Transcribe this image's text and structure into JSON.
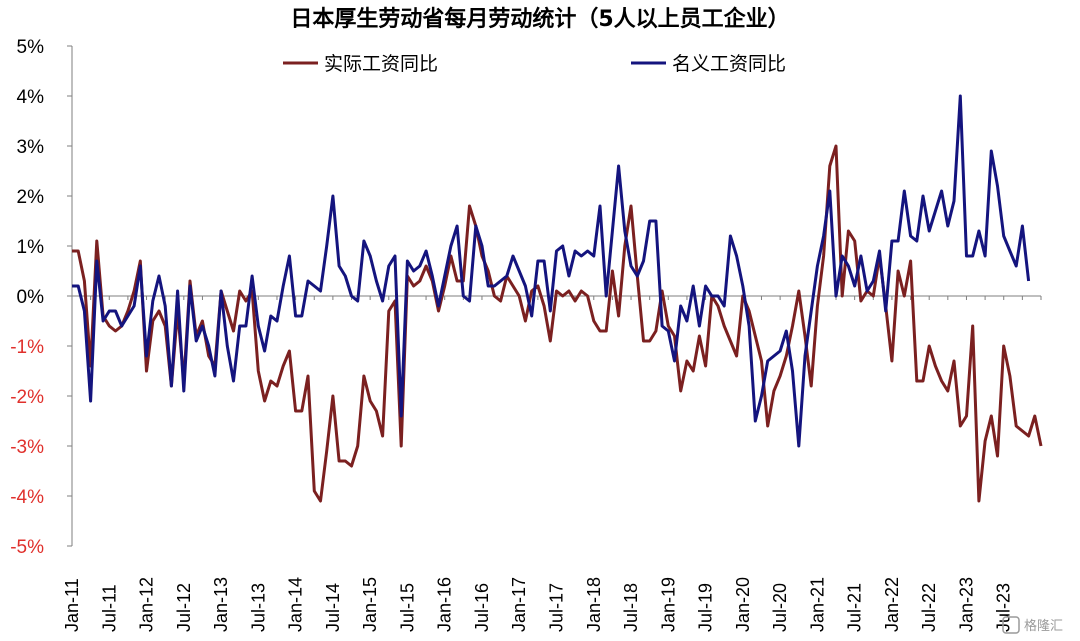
{
  "chart_data": {
    "type": "line",
    "title": "日本厚生劳动省每月劳动统计（5人以上员工企业）",
    "ylim": [
      -5,
      5
    ],
    "ytick_labels": [
      "5%",
      "4%",
      "3%",
      "2%",
      "1%",
      "0%",
      "-1%",
      "-2%",
      "-3%",
      "-4%",
      "-5%"
    ],
    "ytick_values": [
      5,
      4,
      3,
      2,
      1,
      0,
      -1,
      -2,
      -3,
      -4,
      -5
    ],
    "negative_tick_color": "#e0302c",
    "positive_tick_color": "#000000",
    "xtick_labels": [
      "Jan-11",
      "Jul-11",
      "Jan-12",
      "Jul-12",
      "Jan-13",
      "Jul-13",
      "Jan-14",
      "Jul-14",
      "Jan-15",
      "Jul-15",
      "Jan-16",
      "Jul-16",
      "Jan-17",
      "Jul-17",
      "Jan-18",
      "Jul-18",
      "Jan-19",
      "Jul-19",
      "Jan-20",
      "Jul-20",
      "Jan-21",
      "Jul-21",
      "Jan-22",
      "Jul-22",
      "Jan-23",
      "Jul-23"
    ],
    "x_start": "Jan-11",
    "x_end": "Oct-23",
    "legend_position": "top",
    "grid": false,
    "series": [
      {
        "name": "实际工资同比",
        "color": "#7b2020",
        "values": [
          0.9,
          0.9,
          0.3,
          -1.4,
          1.1,
          -0.4,
          -0.6,
          -0.7,
          -0.6,
          -0.3,
          0.1,
          0.7,
          -1.5,
          -0.5,
          -0.3,
          -0.6,
          -1.8,
          -0.3,
          -1.7,
          0.3,
          -0.8,
          -0.5,
          -1.2,
          -1.4,
          0.1,
          -0.3,
          -0.7,
          0.1,
          -0.1,
          0.1,
          -1.5,
          -2.1,
          -1.7,
          -1.8,
          -1.4,
          -1.1,
          -2.3,
          -2.3,
          -1.6,
          -3.9,
          -4.1,
          -3.1,
          -2.0,
          -3.3,
          -3.3,
          -3.4,
          -3.0,
          -1.6,
          -2.1,
          -2.3,
          -2.8,
          -0.3,
          -0.1,
          -3.0,
          0.4,
          0.2,
          0.3,
          0.6,
          0.3,
          -0.3,
          0.2,
          0.8,
          0.3,
          0.3,
          1.8,
          1.4,
          0.8,
          0.5,
          0.0,
          -0.1,
          0.4,
          0.2,
          0.0,
          -0.5,
          0.1,
          0.2,
          -0.2,
          -0.9,
          0.1,
          0.0,
          0.1,
          -0.1,
          0.1,
          0.0,
          -0.5,
          -0.7,
          -0.7,
          0.5,
          -0.4,
          1.0,
          1.8,
          0.4,
          -0.9,
          -0.9,
          -0.7,
          0.1,
          -0.6,
          -0.8,
          -1.9,
          -1.3,
          -1.5,
          -0.8,
          -1.4,
          0.0,
          -0.2,
          -0.6,
          -0.9,
          -1.2,
          0.0,
          -0.3,
          -0.8,
          -1.3,
          -2.6,
          -1.9,
          -1.6,
          -1.2,
          -0.6,
          0.1,
          -0.8,
          -1.8,
          -0.2,
          0.8,
          2.6,
          3.0,
          0.0,
          1.3,
          1.1,
          -0.1,
          0.1,
          0.0,
          0.8,
          -0.2,
          -1.3,
          0.5,
          0.0,
          0.7,
          -1.7,
          -1.7,
          -1.0,
          -1.4,
          -1.7,
          -1.9,
          -1.3,
          -2.6,
          -2.4,
          -0.6,
          -4.1,
          -2.9,
          -2.4,
          -3.2,
          -1.0,
          -1.6,
          -2.6,
          -2.7,
          -2.8,
          -2.4,
          -3.0
        ]
      },
      {
        "name": "名义工资同比",
        "color": "#14147e",
        "values": [
          0.2,
          0.2,
          -0.3,
          -2.1,
          0.7,
          -0.5,
          -0.3,
          -0.3,
          -0.6,
          -0.4,
          -0.2,
          0.6,
          -1.2,
          -0.1,
          0.4,
          -0.2,
          -1.8,
          0.1,
          -1.9,
          0.2,
          -0.9,
          -0.6,
          -1.0,
          -1.6,
          0.1,
          -1.0,
          -1.7,
          -0.6,
          -0.6,
          0.4,
          -0.6,
          -1.1,
          -0.4,
          -0.5,
          0.2,
          0.8,
          -0.4,
          -0.4,
          0.3,
          0.2,
          0.1,
          1.0,
          2.0,
          0.6,
          0.4,
          0.0,
          -0.1,
          1.1,
          0.8,
          0.3,
          -0.1,
          0.6,
          0.8,
          -2.4,
          0.7,
          0.5,
          0.6,
          0.9,
          0.4,
          -0.2,
          0.4,
          1.0,
          1.4,
          0.0,
          -0.1,
          1.4,
          1.0,
          0.2,
          0.2,
          0.3,
          0.4,
          0.8,
          0.5,
          0.2,
          -0.4,
          0.7,
          0.7,
          -0.3,
          0.9,
          1.0,
          0.4,
          0.9,
          0.8,
          0.9,
          0.8,
          1.8,
          0.0,
          1.3,
          2.6,
          1.3,
          0.6,
          0.4,
          0.7,
          1.5,
          1.5,
          -0.6,
          -0.7,
          -1.3,
          -0.2,
          -0.5,
          0.2,
          -0.6,
          0.2,
          0.0,
          0.0,
          -0.2,
          1.2,
          0.8,
          0.2,
          -0.6,
          -2.5,
          -2.0,
          -1.3,
          -1.2,
          -1.1,
          -0.7,
          -1.5,
          -3.0,
          -1.2,
          -0.3,
          0.6,
          1.2,
          2.1,
          0.0,
          0.8,
          0.6,
          0.2,
          0.8,
          0.1,
          0.3,
          0.9,
          -0.3,
          1.1,
          1.1,
          2.1,
          1.2,
          1.1,
          2.0,
          1.3,
          1.7,
          2.1,
          1.4,
          1.9,
          4.0,
          0.8,
          0.8,
          1.3,
          0.8,
          2.9,
          2.2,
          1.2,
          0.9,
          0.6,
          1.4,
          0.3
        ]
      }
    ]
  },
  "watermark": "格隆汇"
}
